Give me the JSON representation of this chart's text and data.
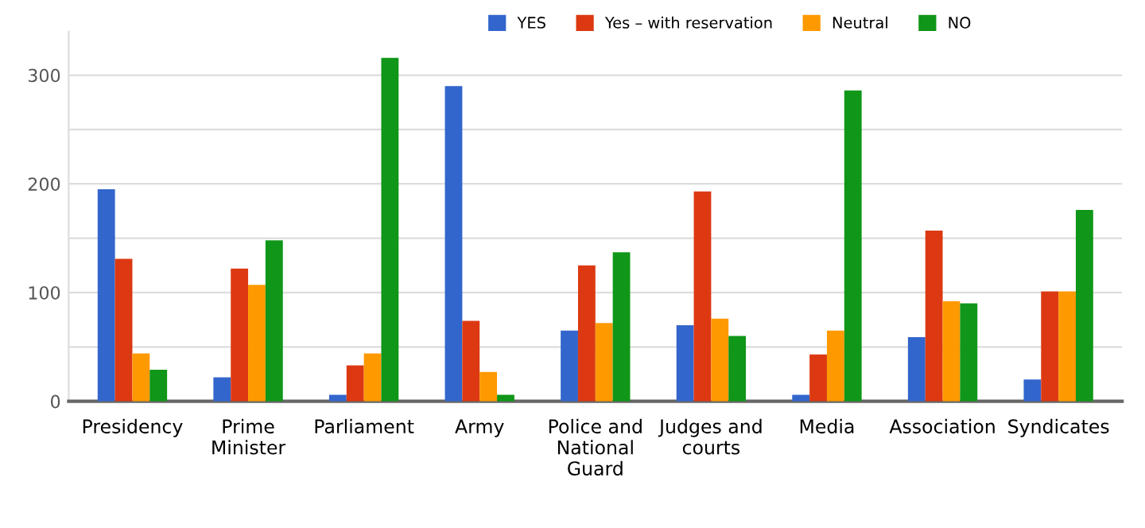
{
  "chart_data": {
    "type": "bar",
    "categories": [
      "Presidency",
      "Prime\nMinister",
      "Parliament",
      "Army",
      "Police and\nNational\nGuard",
      "Judges and\ncourts",
      "Media",
      "Association",
      "Syndicates"
    ],
    "series": [
      {
        "name": "YES",
        "color": "#3366cc",
        "values": [
          195,
          22,
          6,
          290,
          65,
          70,
          6,
          59,
          20
        ]
      },
      {
        "name": "Yes – with reservation",
        "color": "#dc3912",
        "values": [
          131,
          122,
          33,
          74,
          125,
          193,
          43,
          157,
          101
        ]
      },
      {
        "name": "Neutral",
        "color": "#ff9900",
        "values": [
          44,
          107,
          44,
          27,
          72,
          76,
          65,
          92,
          101
        ]
      },
      {
        "name": "NO",
        "color": "#109618",
        "values": [
          29,
          148,
          316,
          6,
          137,
          60,
          286,
          90,
          176
        ]
      }
    ],
    "ylim": [
      0,
      340
    ],
    "yticks": [
      0,
      {
        "value": 50,
        "label": null
      },
      100,
      {
        "value": 150,
        "label": null
      },
      200,
      {
        "value": 250,
        "label": null
      },
      300
    ],
    "grid": "y",
    "legend": "top right"
  }
}
